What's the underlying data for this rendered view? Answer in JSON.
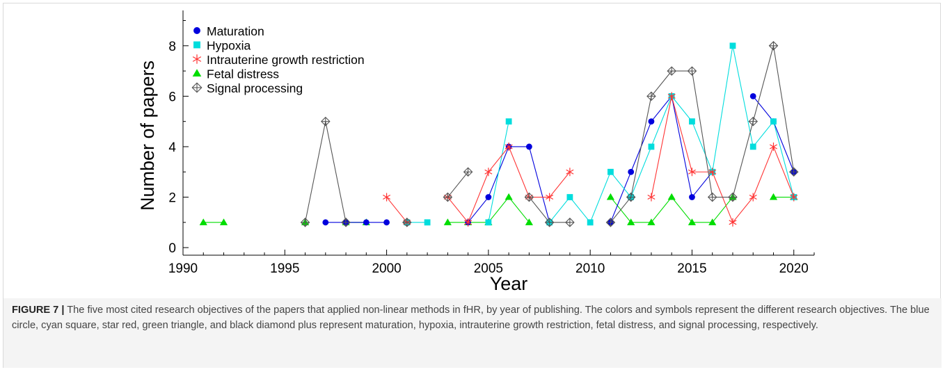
{
  "figure": {
    "label": "FIGURE 7 |",
    "caption": "The five most cited research objectives of the papers that applied non-linear methods in fHR, by year of publishing. The colors and symbols represent the different research objectives. The blue circle, cyan square, star red, green triangle, and black diamond plus represent maturation, hypoxia, intrauterine growth restriction, fetal distress, and signal processing, respectively."
  },
  "chart_data": {
    "type": "line",
    "xlabel": "Year",
    "ylabel": "Number of papers",
    "xlim": [
      1990,
      2021
    ],
    "ylim": [
      -0.3,
      9.4
    ],
    "xticks": [
      1990,
      1995,
      2000,
      2005,
      2010,
      2015,
      2020
    ],
    "yticks": [
      0,
      2,
      4,
      6,
      8
    ],
    "legend_position": "top-left",
    "grid": false,
    "series": [
      {
        "name": "Fetal distress",
        "color": "#00dd00",
        "marker": "triangle",
        "points": [
          [
            1991,
            1
          ],
          [
            1992,
            1
          ],
          null,
          [
            1996,
            1
          ],
          null,
          [
            1998,
            1
          ],
          [
            1999,
            1
          ],
          null,
          [
            2003,
            1
          ],
          [
            2004,
            1
          ],
          [
            2005,
            1
          ],
          [
            2006,
            2
          ],
          [
            2007,
            1
          ],
          null,
          [
            2011,
            2
          ],
          [
            2012,
            1
          ],
          [
            2013,
            1
          ],
          [
            2014,
            2
          ],
          [
            2015,
            1
          ],
          [
            2016,
            1
          ],
          [
            2017,
            2
          ],
          null,
          [
            2019,
            2
          ],
          [
            2020,
            2
          ]
        ]
      },
      {
        "name": "Maturation",
        "color": "#0000dd",
        "marker": "circle",
        "points": [
          [
            1997,
            1
          ],
          [
            1998,
            1
          ],
          [
            1999,
            1
          ],
          [
            2000,
            1
          ],
          null,
          [
            2004,
            1
          ],
          [
            2005,
            2
          ],
          [
            2006,
            4
          ],
          [
            2007,
            4
          ],
          [
            2008,
            1
          ],
          null,
          [
            2011,
            1
          ],
          [
            2012,
            3
          ],
          [
            2013,
            5
          ],
          [
            2014,
            6
          ],
          [
            2015,
            2
          ],
          [
            2016,
            3
          ],
          null,
          [
            2018,
            6
          ],
          [
            2019,
            5
          ],
          [
            2020,
            3
          ]
        ]
      },
      {
        "name": "Hypoxia",
        "color": "#00dddd",
        "marker": "square",
        "points": [
          [
            2001,
            1
          ],
          [
            2002,
            1
          ],
          null,
          [
            2005,
            1
          ],
          [
            2006,
            5
          ],
          null,
          [
            2008,
            1
          ],
          [
            2009,
            2
          ],
          [
            2010,
            1
          ],
          [
            2011,
            3
          ],
          [
            2012,
            2
          ],
          [
            2013,
            4
          ],
          [
            2014,
            6
          ],
          [
            2015,
            5
          ],
          [
            2016,
            3
          ],
          [
            2017,
            8
          ],
          [
            2018,
            4
          ],
          [
            2019,
            5
          ],
          [
            2020,
            2
          ]
        ]
      },
      {
        "name": "Intrauterine growth restriction",
        "color": "#ff3333",
        "marker": "star",
        "points": [
          [
            2000,
            2
          ],
          [
            2001,
            1
          ],
          null,
          [
            2003,
            2
          ],
          [
            2004,
            1
          ],
          [
            2005,
            3
          ],
          [
            2006,
            4
          ],
          [
            2007,
            2
          ],
          [
            2008,
            2
          ],
          [
            2009,
            3
          ],
          null,
          [
            2013,
            2
          ],
          [
            2014,
            6
          ],
          [
            2015,
            3
          ],
          [
            2016,
            3
          ],
          [
            2017,
            1
          ],
          [
            2018,
            2
          ],
          [
            2019,
            4
          ],
          [
            2020,
            2
          ]
        ]
      },
      {
        "name": "Signal processing",
        "color": "#555555",
        "marker": "diamond-plus",
        "points": [
          [
            1996,
            1
          ],
          [
            1997,
            5
          ],
          [
            1998,
            1
          ],
          null,
          [
            2001,
            1
          ],
          null,
          [
            2003,
            2
          ],
          [
            2004,
            3
          ],
          null,
          [
            2007,
            2
          ],
          [
            2008,
            1
          ],
          [
            2009,
            1
          ],
          null,
          [
            2011,
            1
          ],
          [
            2012,
            2
          ],
          [
            2013,
            6
          ],
          [
            2014,
            7
          ],
          [
            2015,
            7
          ],
          [
            2016,
            2
          ],
          [
            2017,
            2
          ],
          [
            2018,
            5
          ],
          [
            2019,
            8
          ],
          [
            2020,
            3
          ]
        ]
      }
    ],
    "legend_order": [
      "Maturation",
      "Hypoxia",
      "Intrauterine growth restriction",
      "Fetal distress",
      "Signal processing"
    ]
  }
}
